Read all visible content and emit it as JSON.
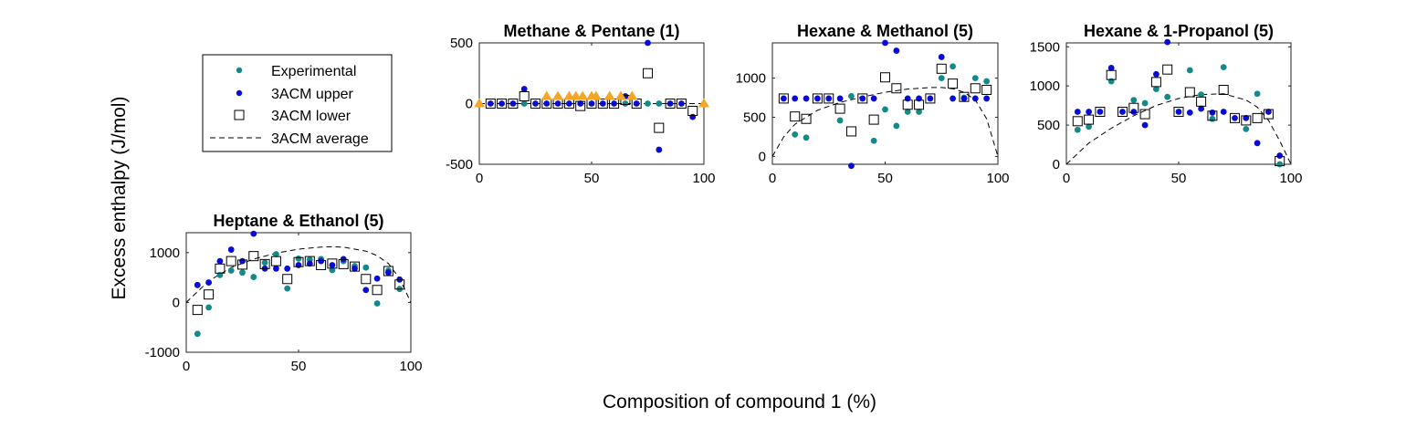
{
  "figure": {
    "ylabel": "Excess enthalpy (J/mol)",
    "xlabel": "Composition of compound 1 (%)"
  },
  "legend": {
    "position": "upper-left",
    "entries": [
      {
        "label": "Experimental",
        "marker": "dot",
        "color": "#138a8a"
      },
      {
        "label": "3ACM upper",
        "marker": "dot",
        "color": "#0b0bd6"
      },
      {
        "label": "3ACM lower",
        "marker": "square",
        "color": "#000000"
      },
      {
        "label": "3ACM average",
        "marker": "dashed-line",
        "color": "#000000"
      }
    ]
  },
  "colors": {
    "experimental": "#138a8a",
    "upper": "#0b0bd6",
    "lower": "#000000",
    "outside": "#f5a623"
  },
  "chart_data": [
    {
      "type": "scatter",
      "title": "Methane & Pentane (1)",
      "xlim": [
        0,
        100
      ],
      "ylim": [
        -500,
        500
      ],
      "xticks": [
        0,
        50,
        100
      ],
      "yticks": [
        -500,
        0,
        500
      ],
      "series": [
        {
          "name": "Experimental",
          "x": [
            20,
            65,
            75,
            80
          ],
          "y": [
            0,
            0,
            0,
            0
          ]
        },
        {
          "name": "3ACM upper",
          "x": [
            5,
            10,
            15,
            20,
            25,
            30,
            35,
            40,
            45,
            50,
            55,
            60,
            65,
            70,
            75,
            80,
            85,
            90,
            95
          ],
          "y": [
            0,
            0,
            0,
            120,
            0,
            0,
            0,
            0,
            0,
            0,
            0,
            0,
            60,
            0,
            500,
            -380,
            0,
            0,
            -110
          ]
        },
        {
          "name": "3ACM lower",
          "x": [
            5,
            10,
            15,
            20,
            25,
            30,
            35,
            40,
            45,
            50,
            55,
            60,
            65,
            70,
            75,
            80,
            85,
            90,
            95
          ],
          "y": [
            0,
            0,
            0,
            60,
            0,
            0,
            0,
            0,
            -20,
            0,
            0,
            0,
            30,
            0,
            250,
            -200,
            0,
            0,
            -60
          ]
        },
        {
          "name": "",
          "marker": "triangle",
          "x": [
            0,
            30,
            35,
            40,
            43,
            46,
            50,
            52,
            58,
            63,
            68,
            100
          ],
          "y": [
            0,
            60,
            60,
            60,
            60,
            60,
            60,
            60,
            60,
            60,
            60,
            0
          ]
        }
      ],
      "average_curve": {
        "x": [
          0,
          100
        ],
        "y": [
          0,
          0
        ]
      }
    },
    {
      "type": "scatter",
      "title": "Hexane & Methanol (5)",
      "xlim": [
        0,
        100
      ],
      "ylim": [
        -100,
        1450
      ],
      "xticks": [
        0,
        50,
        100
      ],
      "yticks": [
        0,
        500,
        1000
      ],
      "series": [
        {
          "name": "Experimental",
          "x": [
            10,
            15,
            30,
            35,
            45,
            50,
            55,
            60,
            65,
            75,
            80,
            85,
            90,
            95
          ],
          "y": [
            280,
            240,
            460,
            770,
            200,
            600,
            390,
            570,
            570,
            1000,
            1150,
            750,
            1000,
            960
          ]
        },
        {
          "name": "3ACM upper",
          "x": [
            5,
            10,
            15,
            20,
            25,
            30,
            35,
            40,
            45,
            50,
            55,
            60,
            65,
            70,
            75,
            80,
            85,
            90,
            95
          ],
          "y": [
            740,
            740,
            740,
            740,
            740,
            740,
            -120,
            740,
            740,
            1450,
            1350,
            740,
            740,
            740,
            1270,
            740,
            740,
            740,
            740
          ]
        },
        {
          "name": "3ACM lower",
          "x": [
            5,
            10,
            15,
            20,
            25,
            30,
            35,
            40,
            45,
            50,
            55,
            60,
            65,
            70,
            75,
            80,
            85,
            90,
            95
          ],
          "y": [
            740,
            510,
            480,
            740,
            740,
            610,
            320,
            740,
            470,
            1010,
            870,
            660,
            660,
            740,
            1120,
            930,
            760,
            870,
            850
          ]
        }
      ],
      "average_curve": {
        "x": [
          0,
          5,
          10,
          20,
          30,
          40,
          50,
          60,
          70,
          75,
          80,
          85,
          90,
          95,
          100
        ],
        "y": [
          0,
          250,
          410,
          590,
          690,
          760,
          820,
          860,
          880,
          880,
          865,
          820,
          720,
          480,
          0
        ]
      }
    },
    {
      "type": "scatter",
      "title": "Hexane & 1-Propanol (5)",
      "xlim": [
        0,
        100
      ],
      "ylim": [
        0,
        1550
      ],
      "xticks": [
        0,
        50,
        100
      ],
      "yticks": [
        0,
        500,
        1000,
        1500
      ],
      "series": [
        {
          "name": "Experimental",
          "x": [
            5,
            10,
            20,
            30,
            35,
            40,
            45,
            55,
            60,
            65,
            70,
            80,
            85,
            95
          ],
          "y": [
            440,
            480,
            1060,
            820,
            780,
            960,
            860,
            1200,
            890,
            580,
            1240,
            450,
            900,
            0
          ]
        },
        {
          "name": "3ACM upper",
          "x": [
            5,
            10,
            15,
            20,
            25,
            30,
            35,
            40,
            45,
            50,
            55,
            60,
            65,
            70,
            75,
            80,
            85,
            90,
            95
          ],
          "y": [
            670,
            670,
            670,
            1230,
            670,
            670,
            500,
            1150,
            1560,
            670,
            660,
            710,
            660,
            670,
            590,
            590,
            270,
            670,
            110
          ]
        },
        {
          "name": "3ACM lower",
          "x": [
            5,
            10,
            15,
            20,
            25,
            30,
            35,
            40,
            45,
            50,
            55,
            60,
            65,
            70,
            75,
            80,
            85,
            90,
            95
          ],
          "y": [
            550,
            570,
            670,
            1140,
            670,
            720,
            640,
            1050,
            1210,
            670,
            920,
            800,
            620,
            950,
            590,
            560,
            590,
            640,
            40
          ]
        }
      ],
      "average_curve": {
        "x": [
          0,
          10,
          20,
          30,
          40,
          50,
          60,
          70,
          80,
          85,
          90,
          95,
          100
        ],
        "y": [
          0,
          270,
          460,
          620,
          750,
          840,
          890,
          900,
          820,
          730,
          560,
          300,
          0
        ]
      }
    },
    {
      "type": "scatter",
      "title": "Heptane & Ethanol (5)",
      "xlim": [
        0,
        100
      ],
      "ylim": [
        -1000,
        1400
      ],
      "xticks": [
        0,
        50,
        100
      ],
      "yticks": [
        -1000,
        0,
        1000
      ],
      "series": [
        {
          "name": "Experimental",
          "x": [
            5,
            10,
            15,
            20,
            25,
            30,
            35,
            40,
            45,
            50,
            55,
            60,
            65,
            70,
            75,
            80,
            85,
            90,
            95
          ],
          "y": [
            -630,
            -100,
            550,
            640,
            600,
            510,
            800,
            970,
            280,
            880,
            860,
            870,
            650,
            830,
            730,
            700,
            -20,
            640,
            270
          ]
        },
        {
          "name": "3ACM upper",
          "x": [
            5,
            10,
            15,
            20,
            25,
            30,
            35,
            40,
            45,
            50,
            55,
            60,
            65,
            70,
            75,
            80,
            85,
            90,
            95
          ],
          "y": [
            350,
            400,
            830,
            1060,
            830,
            1380,
            680,
            680,
            680,
            750,
            780,
            830,
            750,
            870,
            680,
            250,
            480,
            600,
            460
          ]
        },
        {
          "name": "3ACM lower",
          "x": [
            5,
            10,
            15,
            20,
            25,
            30,
            35,
            40,
            45,
            50,
            55,
            60,
            65,
            70,
            75,
            80,
            85,
            90,
            95
          ],
          "y": [
            -150,
            160,
            680,
            830,
            760,
            930,
            770,
            830,
            470,
            810,
            830,
            750,
            780,
            770,
            720,
            470,
            250,
            630,
            360
          ]
        }
      ],
      "average_curve": {
        "x": [
          0,
          10,
          20,
          30,
          40,
          50,
          60,
          65,
          70,
          80,
          85,
          90,
          95,
          100
        ],
        "y": [
          0,
          430,
          700,
          870,
          990,
          1070,
          1110,
          1120,
          1110,
          1030,
          940,
          780,
          480,
          0
        ]
      }
    }
  ]
}
